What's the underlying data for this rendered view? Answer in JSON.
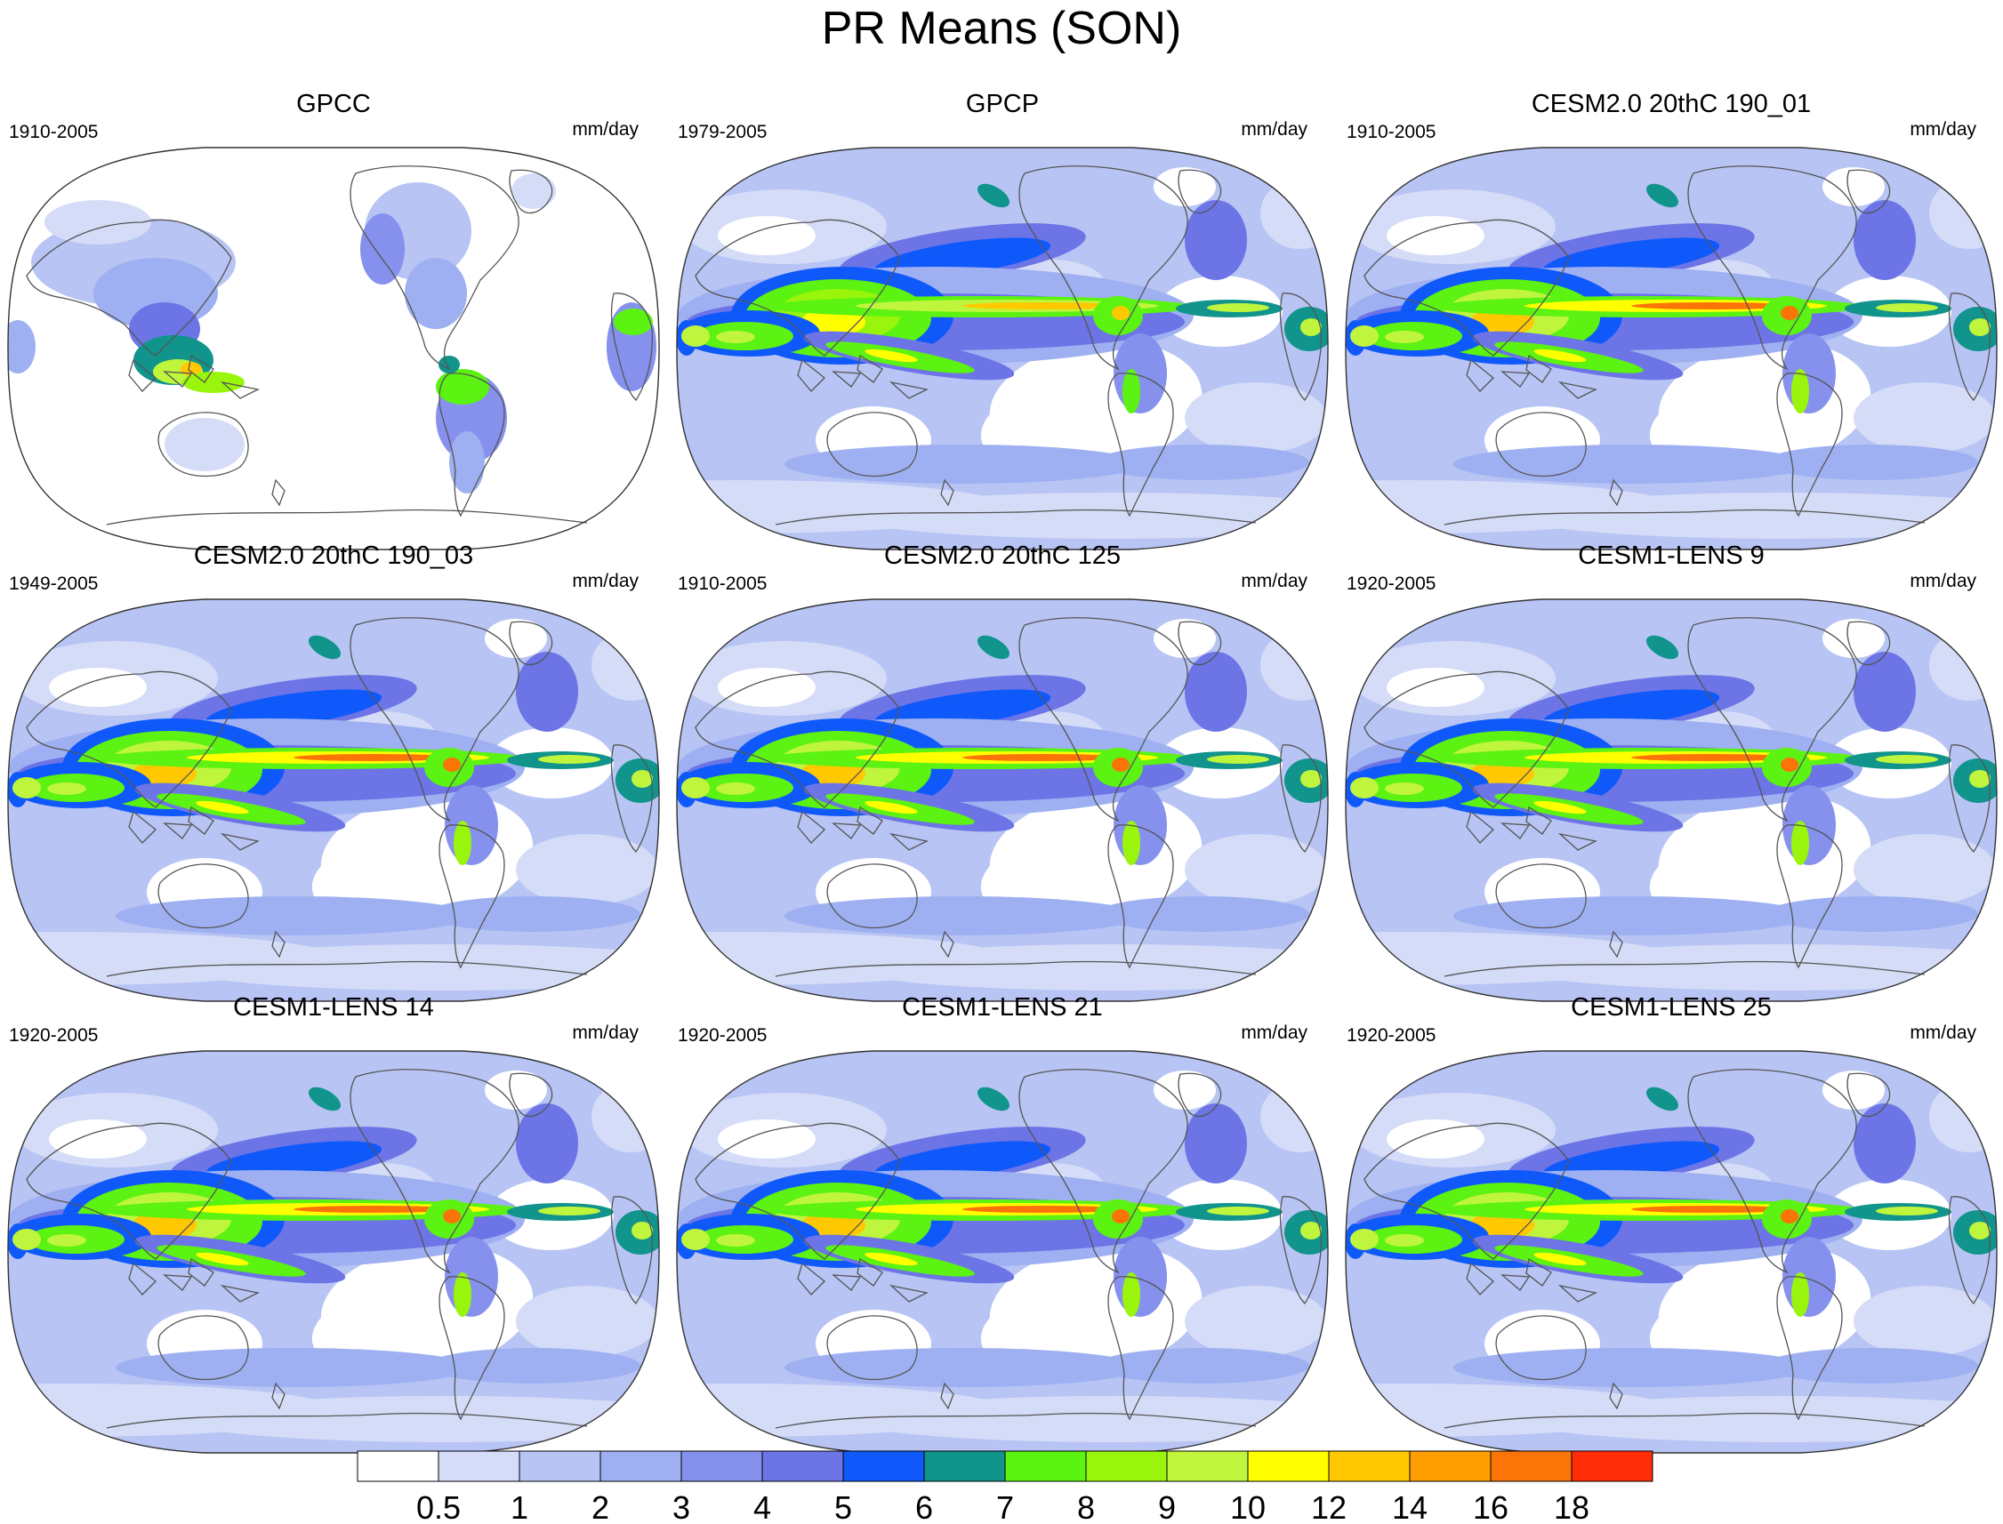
{
  "title": "PR Means (SON)",
  "chart_data": {
    "type": "heatmap",
    "map_projection": "Robinson (Pacific-centered)",
    "field": "precipitation rate seasonal mean",
    "units": "mm/day",
    "panels": [
      {
        "title": "GPCC",
        "period": "1910-2005",
        "units": "mm/day",
        "style": "land"
      },
      {
        "title": "GPCP",
        "period": "1979-2005",
        "units": "mm/day",
        "style": "obs"
      },
      {
        "title": "CESM2.0 20thC 190_01",
        "period": "1910-2005",
        "units": "mm/day",
        "style": "cesm2"
      },
      {
        "title": "CESM2.0 20thC 190_03",
        "period": "1949-2005",
        "units": "mm/day",
        "style": "cesm2"
      },
      {
        "title": "CESM2.0 20thC 125",
        "period": "1910-2005",
        "units": "mm/day",
        "style": "cesm2"
      },
      {
        "title": "CESM1-LENS 9",
        "period": "1920-2005",
        "units": "mm/day",
        "style": "cesm1"
      },
      {
        "title": "CESM1-LENS 14",
        "period": "1920-2005",
        "units": "mm/day",
        "style": "cesm1"
      },
      {
        "title": "CESM1-LENS 21",
        "period": "1920-2005",
        "units": "mm/day",
        "style": "cesm1"
      },
      {
        "title": "CESM1-LENS 25",
        "period": "1920-2005",
        "units": "mm/day",
        "style": "cesm1"
      }
    ],
    "colorbar": {
      "labels": [
        "0.5",
        "1",
        "2",
        "3",
        "4",
        "5",
        "6",
        "7",
        "8",
        "9",
        "10",
        "12",
        "14",
        "16",
        "18"
      ],
      "colors": [
        "#ffffff",
        "#d5dcf7",
        "#b7c4f4",
        "#9eb0f1",
        "#8591ec",
        "#6c74e6",
        "#0f59fb",
        "#10948c",
        "#5cf212",
        "#99f50c",
        "#c0f53d",
        "#ffff00",
        "#ffc800",
        "#ff9e00",
        "#fb7408",
        "#ff2c08"
      ]
    }
  }
}
